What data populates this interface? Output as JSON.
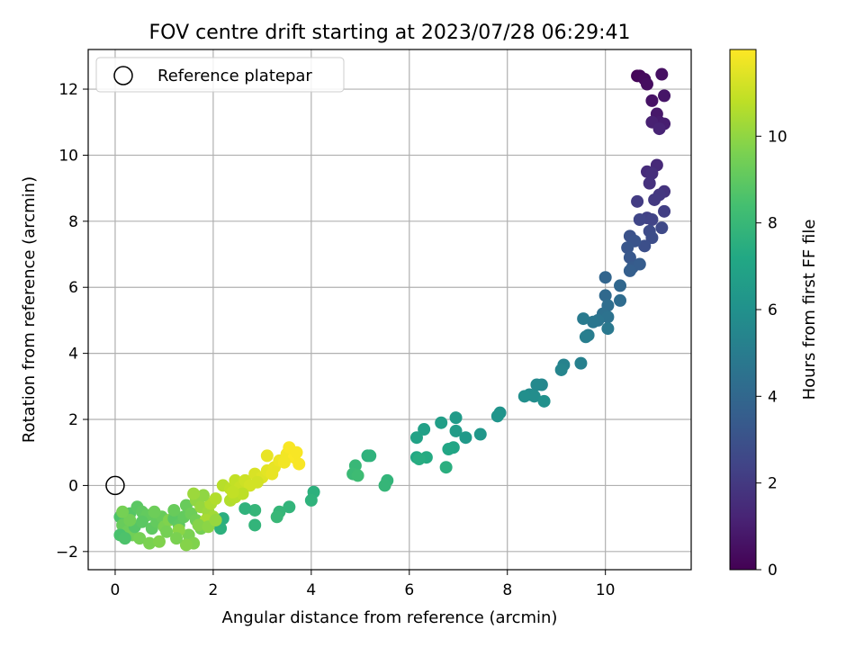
{
  "chart_data": {
    "type": "scatter",
    "title": "FOV centre drift starting at 2023/07/28 06:29:41",
    "xlabel": "Angular distance from reference (arcmin)",
    "ylabel": "Rotation from reference (arcmin)",
    "xlim": [
      -0.55,
      11.75
    ],
    "ylim": [
      -2.55,
      13.2
    ],
    "xticks": [
      0,
      2,
      4,
      6,
      8,
      10
    ],
    "yticks": [
      -2,
      0,
      2,
      4,
      6,
      8,
      10,
      12
    ],
    "grid": true,
    "legend": {
      "placement": "top-left",
      "entries": [
        "Reference platepar"
      ]
    },
    "reference_point": {
      "x": 0,
      "y": 0
    },
    "colorbar": {
      "label": "Hours from first FF file",
      "colormap": "viridis",
      "range": [
        0,
        12
      ],
      "ticks": [
        0,
        2,
        4,
        6,
        8,
        10
      ]
    },
    "points": [
      [
        10.65,
        12.4,
        0.1
      ],
      [
        10.7,
        12.4,
        0.2
      ],
      [
        10.8,
        12.3,
        0.3
      ],
      [
        10.85,
        12.15,
        0.4
      ],
      [
        11.15,
        12.45,
        0.5
      ],
      [
        10.95,
        11.65,
        0.6
      ],
      [
        11.2,
        11.8,
        0.7
      ],
      [
        11.05,
        11.25,
        0.8
      ],
      [
        11.1,
        11.0,
        0.9
      ],
      [
        11.2,
        10.95,
        1.0
      ],
      [
        10.95,
        11.0,
        1.1
      ],
      [
        11.1,
        10.8,
        1.2
      ],
      [
        11.05,
        9.7,
        1.4
      ],
      [
        10.85,
        9.5,
        1.5
      ],
      [
        10.95,
        9.45,
        1.6
      ],
      [
        10.9,
        9.15,
        1.7
      ],
      [
        11.2,
        8.9,
        1.8
      ],
      [
        11.1,
        8.8,
        1.9
      ],
      [
        11.0,
        8.65,
        2.0
      ],
      [
        10.65,
        8.6,
        2.1
      ],
      [
        11.2,
        8.3,
        2.2
      ],
      [
        10.85,
        8.1,
        2.3
      ],
      [
        10.95,
        8.05,
        2.4
      ],
      [
        10.7,
        8.05,
        2.5
      ],
      [
        11.15,
        7.8,
        2.6
      ],
      [
        10.9,
        7.7,
        2.7
      ],
      [
        10.95,
        7.5,
        2.8
      ],
      [
        10.8,
        7.25,
        2.9
      ],
      [
        10.5,
        7.55,
        3.0
      ],
      [
        10.6,
        7.4,
        3.1
      ],
      [
        10.45,
        7.2,
        3.2
      ],
      [
        10.5,
        6.9,
        3.3
      ],
      [
        10.55,
        6.6,
        3.4
      ],
      [
        10.7,
        6.7,
        3.5
      ],
      [
        10.5,
        6.5,
        3.6
      ],
      [
        10.0,
        6.3,
        3.9
      ],
      [
        10.3,
        6.05,
        4.0
      ],
      [
        10.0,
        5.75,
        4.1
      ],
      [
        10.3,
        5.6,
        4.2
      ],
      [
        10.05,
        5.45,
        4.3
      ],
      [
        9.95,
        5.2,
        4.4
      ],
      [
        10.05,
        5.1,
        4.5
      ],
      [
        9.85,
        5.0,
        4.6
      ],
      [
        9.75,
        4.95,
        4.7
      ],
      [
        10.05,
        4.75,
        4.8
      ],
      [
        9.55,
        5.05,
        4.9
      ],
      [
        9.65,
        4.55,
        5.0
      ],
      [
        9.6,
        4.5,
        5.1
      ],
      [
        9.5,
        3.7,
        5.2
      ],
      [
        9.15,
        3.65,
        5.3
      ],
      [
        9.1,
        3.5,
        5.4
      ],
      [
        8.7,
        3.05,
        5.5
      ],
      [
        8.6,
        3.05,
        5.6
      ],
      [
        8.45,
        2.75,
        5.7
      ],
      [
        8.55,
        2.7,
        5.8
      ],
      [
        8.35,
        2.7,
        5.9
      ],
      [
        8.75,
        2.55,
        6.0
      ],
      [
        7.85,
        2.2,
        6.1
      ],
      [
        7.8,
        2.1,
        6.2
      ],
      [
        7.45,
        1.55,
        6.3
      ],
      [
        7.15,
        1.45,
        6.4
      ],
      [
        6.95,
        2.05,
        6.5
      ],
      [
        6.95,
        1.65,
        6.6
      ],
      [
        6.65,
        1.9,
        6.7
      ],
      [
        6.3,
        1.7,
        6.8
      ],
      [
        6.15,
        1.45,
        6.9
      ],
      [
        6.9,
        1.15,
        7.0
      ],
      [
        6.8,
        1.1,
        7.1
      ],
      [
        6.15,
        0.85,
        7.2
      ],
      [
        6.35,
        0.85,
        7.3
      ],
      [
        6.2,
        0.8,
        7.4
      ],
      [
        6.75,
        0.55,
        7.5
      ],
      [
        5.15,
        0.9,
        7.6
      ],
      [
        5.2,
        0.9,
        7.7
      ],
      [
        5.55,
        0.15,
        7.8
      ],
      [
        5.5,
        0.0,
        7.9
      ],
      [
        4.9,
        0.6,
        8.0
      ],
      [
        4.85,
        0.35,
        8.1
      ],
      [
        4.95,
        0.3,
        8.2
      ],
      [
        4.05,
        -0.2,
        7.6
      ],
      [
        4.0,
        -0.45,
        7.7
      ],
      [
        3.55,
        -0.65,
        7.8
      ],
      [
        3.35,
        -0.8,
        7.9
      ],
      [
        3.3,
        -0.95,
        8.0
      ],
      [
        2.85,
        -0.75,
        7.9
      ],
      [
        2.65,
        -0.7,
        7.7
      ],
      [
        2.85,
        -1.2,
        7.8
      ],
      [
        2.2,
        -1.0,
        7.5
      ],
      [
        2.15,
        -1.3,
        7.6
      ],
      [
        0.1,
        -0.95,
        8.6
      ],
      [
        0.2,
        -1.0,
        8.7
      ],
      [
        0.3,
        -0.85,
        8.8
      ],
      [
        0.45,
        -0.65,
        8.9
      ],
      [
        0.55,
        -0.8,
        9.0
      ],
      [
        0.65,
        -0.9,
        9.1
      ],
      [
        0.15,
        -1.2,
        9.2
      ],
      [
        0.25,
        -1.4,
        9.3
      ],
      [
        0.35,
        -1.5,
        9.4
      ],
      [
        0.5,
        -1.6,
        9.5
      ],
      [
        0.7,
        -1.75,
        9.6
      ],
      [
        0.9,
        -1.7,
        9.7
      ],
      [
        0.1,
        -1.5,
        8.5
      ],
      [
        0.2,
        -1.6,
        8.6
      ],
      [
        0.4,
        -1.25,
        8.8
      ],
      [
        0.55,
        -1.1,
        8.9
      ],
      [
        0.75,
        -1.3,
        9.0
      ],
      [
        0.85,
        -1.1,
        9.1
      ],
      [
        0.95,
        -0.95,
        9.2
      ],
      [
        0.8,
        -0.8,
        9.3
      ],
      [
        0.3,
        -1.05,
        9.4
      ],
      [
        0.15,
        -0.8,
        9.5
      ],
      [
        1.0,
        -1.25,
        9.6
      ],
      [
        1.1,
        -1.05,
        9.7
      ],
      [
        1.2,
        -1.0,
        8.9
      ],
      [
        1.3,
        -1.2,
        9.0
      ],
      [
        1.4,
        -0.95,
        9.1
      ],
      [
        1.45,
        -0.6,
        9.2
      ],
      [
        1.55,
        -0.85,
        9.3
      ],
      [
        1.65,
        -1.05,
        9.4
      ],
      [
        1.75,
        -1.3,
        9.5
      ],
      [
        1.5,
        -1.5,
        9.6
      ],
      [
        1.6,
        -1.75,
        9.7
      ],
      [
        1.45,
        -1.8,
        9.8
      ],
      [
        1.3,
        -1.35,
        9.9
      ],
      [
        1.65,
        -0.45,
        10.0
      ],
      [
        1.75,
        -0.65,
        10.1
      ],
      [
        1.9,
        -0.8,
        10.2
      ],
      [
        2.0,
        -0.95,
        10.3
      ],
      [
        1.85,
        -1.05,
        10.4
      ],
      [
        1.95,
        -0.55,
        10.5
      ],
      [
        2.05,
        -0.4,
        10.6
      ],
      [
        1.8,
        -0.3,
        10.0
      ],
      [
        1.6,
        -0.25,
        10.2
      ],
      [
        1.7,
        -1.2,
        9.8
      ],
      [
        1.9,
        -1.25,
        9.9
      ],
      [
        2.05,
        -1.05,
        10.1
      ],
      [
        1.2,
        -0.75,
        9.2
      ],
      [
        1.05,
        -1.4,
        9.5
      ],
      [
        1.25,
        -1.6,
        9.6
      ],
      [
        2.2,
        0.0,
        10.7
      ],
      [
        2.35,
        -0.1,
        10.8
      ],
      [
        2.45,
        0.15,
        10.9
      ],
      [
        2.55,
        -0.05,
        11.0
      ],
      [
        2.65,
        0.15,
        11.1
      ],
      [
        2.75,
        0.0,
        11.2
      ],
      [
        2.85,
        0.35,
        11.3
      ],
      [
        3.0,
        0.25,
        11.4
      ],
      [
        3.1,
        0.45,
        11.5
      ],
      [
        3.25,
        0.55,
        11.6
      ],
      [
        3.35,
        0.75,
        11.7
      ],
      [
        3.5,
        0.95,
        11.8
      ],
      [
        3.55,
        1.15,
        11.9
      ],
      [
        3.65,
        0.85,
        11.95
      ],
      [
        3.7,
        1.0,
        11.9
      ],
      [
        3.45,
        0.7,
        11.8
      ],
      [
        3.2,
        0.35,
        11.6
      ],
      [
        2.35,
        -0.45,
        10.6
      ],
      [
        2.45,
        -0.35,
        10.7
      ],
      [
        2.6,
        -0.25,
        10.8
      ],
      [
        3.1,
        0.9,
        11.6
      ],
      [
        3.75,
        0.65,
        11.9
      ],
      [
        2.9,
        0.1,
        11.2
      ],
      [
        2.4,
        -0.2,
        10.9
      ]
    ]
  }
}
